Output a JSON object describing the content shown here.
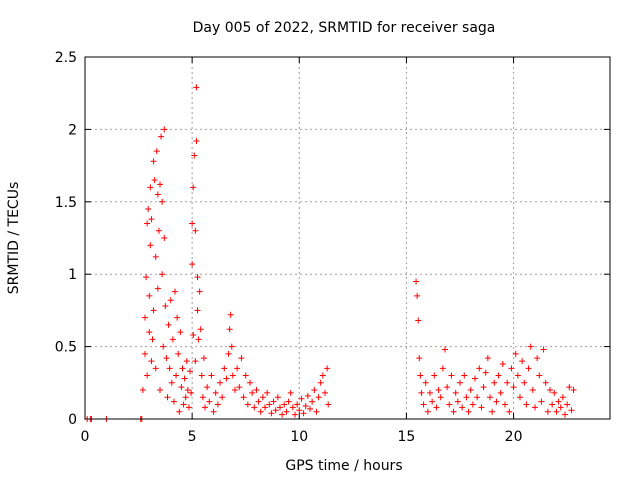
{
  "chart_data": {
    "type": "scatter",
    "title": "Day 005 of 2022, SRMTID for receiver saga",
    "xlabel": "GPS time / hours",
    "ylabel": "SRMTID / TECUs",
    "xlim": [
      0,
      24.5
    ],
    "ylim": [
      0,
      2.5
    ],
    "xticks": [
      0,
      5,
      10,
      15,
      20
    ],
    "xtick_labels": [
      "0",
      "5",
      "10",
      "15",
      "20"
    ],
    "yticks": [
      0,
      0.5,
      1,
      1.5,
      2,
      2.5
    ],
    "ytick_labels": [
      "0",
      "0.5",
      "1",
      "1.5",
      "2",
      "2.5"
    ],
    "grid": true,
    "marker": "+",
    "color": "#ff0000",
    "series": [
      {
        "name": "SRMTID",
        "points": [
          [
            0.1,
            0.0
          ],
          [
            0.25,
            0.0
          ],
          [
            0.3,
            0.0
          ],
          [
            1.0,
            0.0
          ],
          [
            2.6,
            0.0
          ],
          [
            2.65,
            0.0
          ],
          [
            2.7,
            0.2
          ],
          [
            2.8,
            0.45
          ],
          [
            2.8,
            0.7
          ],
          [
            2.85,
            0.98
          ],
          [
            2.9,
            1.35
          ],
          [
            2.9,
            0.3
          ],
          [
            2.95,
            1.45
          ],
          [
            3.0,
            0.85
          ],
          [
            3.0,
            0.6
          ],
          [
            3.05,
            1.6
          ],
          [
            3.05,
            1.2
          ],
          [
            3.1,
            1.38
          ],
          [
            3.1,
            0.4
          ],
          [
            3.15,
            0.55
          ],
          [
            3.2,
            1.78
          ],
          [
            3.2,
            0.75
          ],
          [
            3.25,
            1.65
          ],
          [
            3.3,
            1.12
          ],
          [
            3.3,
            0.35
          ],
          [
            3.35,
            1.85
          ],
          [
            3.4,
            1.55
          ],
          [
            3.4,
            0.9
          ],
          [
            3.45,
            1.3
          ],
          [
            3.5,
            1.62
          ],
          [
            3.5,
            0.2
          ],
          [
            3.55,
            1.95
          ],
          [
            3.6,
            1.5
          ],
          [
            3.6,
            1.0
          ],
          [
            3.65,
            0.5
          ],
          [
            3.7,
            2.0
          ],
          [
            3.7,
            1.25
          ],
          [
            3.75,
            0.78
          ],
          [
            3.8,
            0.42
          ],
          [
            3.85,
            0.15
          ],
          [
            3.9,
            0.65
          ],
          [
            3.95,
            0.35
          ],
          [
            4.0,
            0.82
          ],
          [
            4.05,
            0.25
          ],
          [
            4.1,
            0.55
          ],
          [
            4.15,
            0.12
          ],
          [
            4.2,
            0.88
          ],
          [
            4.25,
            0.3
          ],
          [
            4.3,
            0.7
          ],
          [
            4.35,
            0.45
          ],
          [
            4.4,
            0.05
          ],
          [
            4.45,
            0.6
          ],
          [
            4.5,
            0.22
          ],
          [
            4.55,
            0.35
          ],
          [
            4.6,
            0.1
          ],
          [
            4.65,
            0.28
          ],
          [
            4.7,
            0.15
          ],
          [
            4.75,
            0.4
          ],
          [
            4.8,
            0.2
          ],
          [
            4.85,
            0.08
          ],
          [
            4.9,
            0.33
          ],
          [
            4.95,
            0.18
          ],
          [
            5.0,
            1.35
          ],
          [
            5.0,
            1.07
          ],
          [
            5.05,
            1.6
          ],
          [
            5.05,
            0.58
          ],
          [
            5.1,
            1.82
          ],
          [
            5.15,
            1.3
          ],
          [
            5.15,
            0.4
          ],
          [
            5.2,
            2.29
          ],
          [
            5.2,
            1.92
          ],
          [
            5.25,
            0.98
          ],
          [
            5.25,
            0.75
          ],
          [
            5.3,
            0.55
          ],
          [
            5.35,
            0.88
          ],
          [
            5.4,
            0.62
          ],
          [
            5.45,
            0.3
          ],
          [
            5.5,
            0.15
          ],
          [
            5.55,
            0.42
          ],
          [
            5.6,
            0.08
          ],
          [
            5.7,
            0.22
          ],
          [
            5.8,
            0.12
          ],
          [
            5.9,
            0.3
          ],
          [
            6.0,
            0.05
          ],
          [
            6.1,
            0.18
          ],
          [
            6.2,
            0.1
          ],
          [
            6.3,
            0.25
          ],
          [
            6.4,
            0.15
          ],
          [
            6.5,
            0.35
          ],
          [
            6.6,
            0.28
          ],
          [
            6.7,
            0.45
          ],
          [
            6.75,
            0.62
          ],
          [
            6.8,
            0.72
          ],
          [
            6.85,
            0.5
          ],
          [
            6.9,
            0.3
          ],
          [
            7.0,
            0.2
          ],
          [
            7.1,
            0.35
          ],
          [
            7.2,
            0.22
          ],
          [
            7.3,
            0.42
          ],
          [
            7.4,
            0.15
          ],
          [
            7.5,
            0.3
          ],
          [
            7.6,
            0.1
          ],
          [
            7.7,
            0.25
          ],
          [
            7.8,
            0.18
          ],
          [
            7.9,
            0.08
          ],
          [
            8.0,
            0.2
          ],
          [
            8.1,
            0.12
          ],
          [
            8.2,
            0.05
          ],
          [
            8.3,
            0.15
          ],
          [
            8.4,
            0.08
          ],
          [
            8.5,
            0.18
          ],
          [
            8.6,
            0.1
          ],
          [
            8.7,
            0.04
          ],
          [
            8.8,
            0.12
          ],
          [
            8.9,
            0.06
          ],
          [
            9.0,
            0.15
          ],
          [
            9.1,
            0.08
          ],
          [
            9.2,
            0.03
          ],
          [
            9.3,
            0.1
          ],
          [
            9.4,
            0.05
          ],
          [
            9.5,
            0.12
          ],
          [
            9.6,
            0.18
          ],
          [
            9.7,
            0.08
          ],
          [
            9.8,
            0.03
          ],
          [
            9.9,
            0.1
          ],
          [
            10.0,
            0.06
          ],
          [
            10.1,
            0.14
          ],
          [
            10.2,
            0.04
          ],
          [
            10.3,
            0.09
          ],
          [
            10.4,
            0.16
          ],
          [
            10.5,
            0.07
          ],
          [
            10.6,
            0.12
          ],
          [
            10.7,
            0.2
          ],
          [
            10.8,
            0.05
          ],
          [
            10.9,
            0.15
          ],
          [
            11.0,
            0.25
          ],
          [
            11.1,
            0.3
          ],
          [
            11.2,
            0.18
          ],
          [
            11.3,
            0.35
          ],
          [
            11.35,
            0.1
          ],
          [
            15.45,
            0.95
          ],
          [
            15.5,
            0.85
          ],
          [
            15.55,
            0.68
          ],
          [
            15.6,
            0.42
          ],
          [
            15.65,
            0.3
          ],
          [
            15.7,
            0.18
          ],
          [
            15.8,
            0.1
          ],
          [
            15.9,
            0.25
          ],
          [
            16.0,
            0.05
          ],
          [
            16.1,
            0.18
          ],
          [
            16.2,
            0.12
          ],
          [
            16.3,
            0.3
          ],
          [
            16.4,
            0.08
          ],
          [
            16.5,
            0.2
          ],
          [
            16.6,
            0.15
          ],
          [
            16.7,
            0.35
          ],
          [
            16.8,
            0.48
          ],
          [
            16.9,
            0.22
          ],
          [
            17.0,
            0.1
          ],
          [
            17.1,
            0.3
          ],
          [
            17.2,
            0.05
          ],
          [
            17.3,
            0.18
          ],
          [
            17.4,
            0.12
          ],
          [
            17.5,
            0.25
          ],
          [
            17.6,
            0.08
          ],
          [
            17.7,
            0.3
          ],
          [
            17.8,
            0.15
          ],
          [
            17.9,
            0.05
          ],
          [
            18.0,
            0.2
          ],
          [
            18.1,
            0.1
          ],
          [
            18.2,
            0.28
          ],
          [
            18.3,
            0.15
          ],
          [
            18.4,
            0.35
          ],
          [
            18.5,
            0.08
          ],
          [
            18.6,
            0.22
          ],
          [
            18.7,
            0.32
          ],
          [
            18.8,
            0.42
          ],
          [
            18.9,
            0.15
          ],
          [
            19.0,
            0.05
          ],
          [
            19.1,
            0.25
          ],
          [
            19.2,
            0.12
          ],
          [
            19.3,
            0.3
          ],
          [
            19.4,
            0.18
          ],
          [
            19.5,
            0.38
          ],
          [
            19.6,
            0.1
          ],
          [
            19.7,
            0.25
          ],
          [
            19.8,
            0.05
          ],
          [
            19.9,
            0.35
          ],
          [
            20.0,
            0.22
          ],
          [
            20.1,
            0.45
          ],
          [
            20.2,
            0.3
          ],
          [
            20.3,
            0.15
          ],
          [
            20.4,
            0.4
          ],
          [
            20.5,
            0.25
          ],
          [
            20.6,
            0.1
          ],
          [
            20.7,
            0.35
          ],
          [
            20.8,
            0.5
          ],
          [
            20.9,
            0.2
          ],
          [
            21.0,
            0.08
          ],
          [
            21.1,
            0.42
          ],
          [
            21.2,
            0.3
          ],
          [
            21.3,
            0.12
          ],
          [
            21.4,
            0.48
          ],
          [
            21.5,
            0.25
          ],
          [
            21.6,
            0.05
          ],
          [
            21.7,
            0.2
          ],
          [
            21.8,
            0.1
          ],
          [
            21.9,
            0.18
          ],
          [
            22.0,
            0.05
          ],
          [
            22.1,
            0.12
          ],
          [
            22.2,
            0.08
          ],
          [
            22.3,
            0.15
          ],
          [
            22.4,
            0.03
          ],
          [
            22.5,
            0.1
          ],
          [
            22.6,
            0.22
          ],
          [
            22.7,
            0.06
          ],
          [
            22.8,
            0.2
          ]
        ]
      }
    ]
  }
}
